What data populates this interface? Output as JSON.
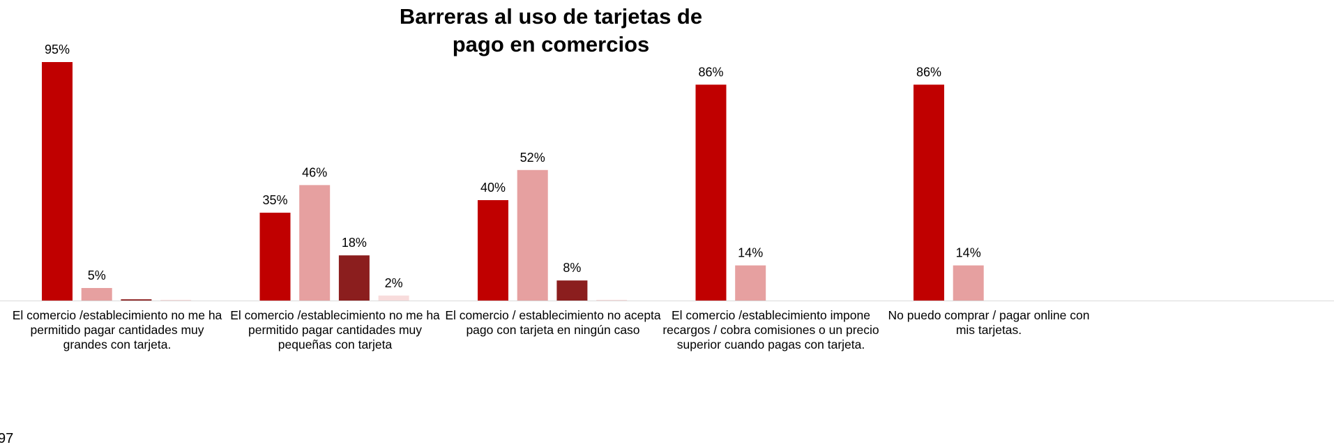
{
  "chart_data": {
    "type": "bar",
    "title": "Barreras al uso de tarjetas de pago en comercios",
    "categories": [
      "El comercio /establecimiento no me ha permitido pagar cantidades muy grandes con tarjeta.",
      "El comercio /establecimiento no me ha permitido pagar cantidades muy pequeñas con tarjeta",
      "El comercio / establecimiento no acepta pago con tarjeta en ningún caso",
      "El comercio /establecimiento impone recargos / cobra comisiones o un precio superior cuando pagas con tarjeta.",
      "No puedo comprar / pagar online con mis tarjetas."
    ],
    "series": [
      {
        "color": "#c00000",
        "values": [
          95,
          35,
          40,
          86,
          86
        ],
        "value_labels": [
          "95%",
          "35%",
          "40%",
          "86%",
          "86%"
        ]
      },
      {
        "color": "#e6a0a0",
        "values": [
          5,
          46,
          52,
          14,
          14
        ],
        "value_labels": [
          "5%",
          "46%",
          "52%",
          "14%",
          "14%"
        ]
      },
      {
        "color": "#8b1e1e",
        "values": [
          0.5,
          18,
          8,
          null,
          null
        ],
        "value_labels": [
          null,
          "18%",
          "8%",
          null,
          null
        ]
      },
      {
        "color": "#f8dcdc",
        "values": [
          0.3,
          2,
          0.3,
          null,
          null
        ],
        "value_labels": [
          null,
          "2%",
          null,
          null,
          null
        ]
      }
    ],
    "ylim": [
      0,
      100
    ],
    "annotation": "97"
  }
}
